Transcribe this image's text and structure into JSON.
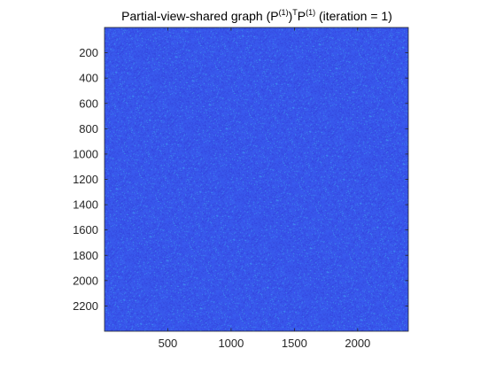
{
  "chart_data": {
    "type": "heatmap",
    "title": {
      "prefix": "Partial-view-shared graph (P",
      "sup1": "(1)",
      "mid1": ")",
      "sup2": "T",
      "mid2": "P",
      "sup3": "(1)",
      "suffix": " (iteration = 1)"
    },
    "xlabel": "",
    "ylabel": "",
    "xlim": [
      0,
      2400
    ],
    "ylim": [
      0,
      2400
    ],
    "y_reversed": true,
    "xticks": [
      500,
      1000,
      1500,
      2000
    ],
    "xtick_labels": [
      "500",
      "1000",
      "1500",
      "2000"
    ],
    "yticks": [
      200,
      400,
      600,
      800,
      1000,
      1200,
      1400,
      1600,
      1800,
      2000,
      2200
    ],
    "ytick_labels": [
      "200",
      "400",
      "600",
      "800",
      "1000",
      "1200",
      "1400",
      "1600",
      "1800",
      "2000",
      "2200"
    ],
    "matrix_size": [
      2400,
      2400
    ],
    "value_pattern": "dense low-valued noise with no visible structure",
    "colormap": {
      "low": "#3344dd",
      "mid": "#3a5ef0",
      "high": "#3f9cf0"
    },
    "background_color": "#ffffff",
    "axis_color": "#262626"
  }
}
